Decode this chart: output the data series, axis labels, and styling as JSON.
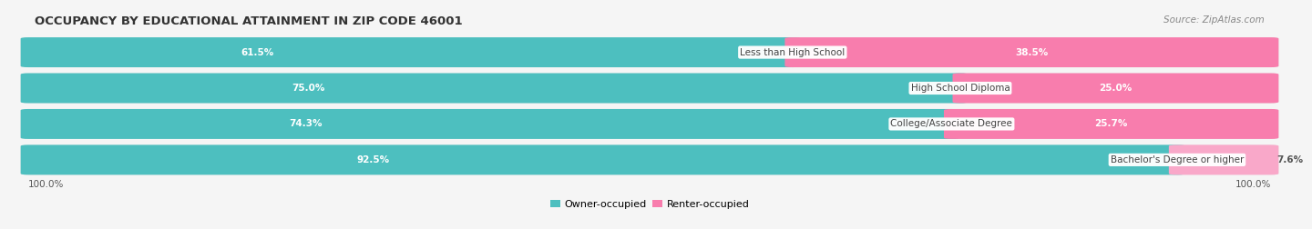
{
  "title": "OCCUPANCY BY EDUCATIONAL ATTAINMENT IN ZIP CODE 46001",
  "source": "Source: ZipAtlas.com",
  "categories": [
    "Less than High School",
    "High School Diploma",
    "College/Associate Degree",
    "Bachelor's Degree or higher"
  ],
  "owner_values": [
    61.5,
    75.0,
    74.3,
    92.5
  ],
  "renter_values": [
    38.5,
    25.0,
    25.7,
    7.6
  ],
  "owner_color": "#4DBFBF",
  "renter_color": "#F87DAD",
  "renter_color_light": "#F9A8C9",
  "background_color": "#f5f5f5",
  "bar_bg_color": "#e8e8e8",
  "title_fontsize": 9.5,
  "source_fontsize": 7.5,
  "label_fontsize": 7.5,
  "category_fontsize": 7.5,
  "legend_fontsize": 8,
  "axis_label_fontsize": 7.5,
  "left_axis_label": "100.0%",
  "right_axis_label": "100.0%"
}
